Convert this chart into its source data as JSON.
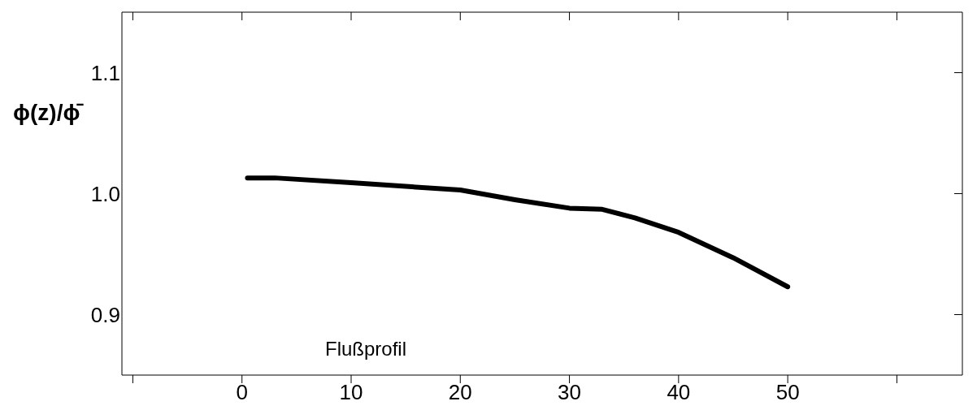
{
  "chart_data": {
    "type": "line",
    "ylabel": "ϕ(z)/ϕ̄",
    "annotations": [
      "Flußprofil"
    ],
    "x": [
      0.5,
      3,
      10,
      15,
      20,
      25,
      30,
      33,
      36,
      40,
      45,
      50
    ],
    "series": [
      {
        "color": "#000000",
        "values": [
          1.013,
          1.013,
          1.009,
          1.006,
          1.003,
          0.995,
          0.988,
          0.987,
          0.98,
          0.968,
          0.947,
          0.923
        ]
      }
    ],
    "xlim": [
      -11,
      66
    ],
    "xticks": [
      {
        "value": -10,
        "label": null
      },
      0,
      10,
      20,
      30,
      40,
      50,
      {
        "value": 60,
        "label": null
      }
    ],
    "ylim": [
      0.85,
      1.15
    ],
    "yticks": [
      {
        "value": 0.9,
        "label": "0.9"
      },
      {
        "value": 1.0,
        "label": "1.0"
      },
      {
        "value": 1.1,
        "label": "1.1"
      }
    ],
    "grid": false,
    "legend": false,
    "marker": "none",
    "line_style": "solid"
  }
}
